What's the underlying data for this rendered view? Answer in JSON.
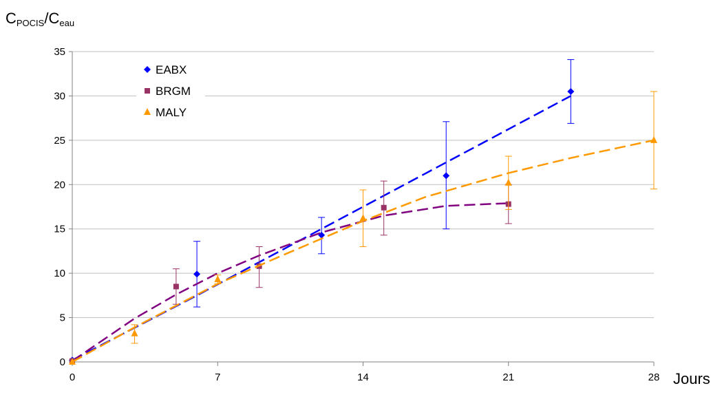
{
  "chart_data": {
    "type": "scatter",
    "ylabel": {
      "main": "C",
      "sub1": "POCIS",
      "sep": "/C",
      "sub2": "eau"
    },
    "xlabel": "Jours",
    "xlim": [
      0,
      28
    ],
    "ylim": [
      0,
      35
    ],
    "xticks": [
      0,
      7,
      14,
      21,
      28
    ],
    "xtick_labels": [
      "0",
      "7",
      "14",
      "21",
      "28"
    ],
    "yticks": [
      0,
      5,
      10,
      15,
      20,
      25,
      30,
      35
    ],
    "ytick_labels": [
      "0",
      "5",
      "10",
      "15",
      "20",
      "25",
      "30",
      "35"
    ],
    "grid": "horizontal",
    "legend_position": "top-left",
    "series": [
      {
        "name": "EABX",
        "color": "#0000ff",
        "marker": "diamond",
        "points": [
          {
            "x": 0,
            "y": 0.2,
            "err_lo": null,
            "err_hi": null
          },
          {
            "x": 6,
            "y": 9.9,
            "err_lo": 6.2,
            "err_hi": 13.6
          },
          {
            "x": 12,
            "y": 14.3,
            "err_lo": 12.2,
            "err_hi": 16.3
          },
          {
            "x": 18,
            "y": 21.0,
            "err_lo": 15.0,
            "err_hi": 27.1
          },
          {
            "x": 24,
            "y": 30.5,
            "err_lo": 26.9,
            "err_hi": 34.1
          }
        ],
        "trend": [
          [
            0,
            0.2
          ],
          [
            6,
            7.5
          ],
          [
            12,
            15.0
          ],
          [
            18,
            22.5
          ],
          [
            24,
            30.0
          ]
        ]
      },
      {
        "name": "BRGM",
        "color": "#993366",
        "trend_color": "#800080",
        "marker": "square",
        "points": [
          {
            "x": 0,
            "y": 0.1,
            "err_lo": null,
            "err_hi": null
          },
          {
            "x": 5,
            "y": 8.5,
            "err_lo": 6.5,
            "err_hi": 10.5
          },
          {
            "x": 9,
            "y": 10.8,
            "err_lo": 8.4,
            "err_hi": 13.0
          },
          {
            "x": 15,
            "y": 17.4,
            "err_lo": 14.3,
            "err_hi": 20.4
          },
          {
            "x": 21,
            "y": 17.8,
            "err_lo": 15.6,
            "err_hi": 20.0
          }
        ],
        "trend": [
          [
            0,
            0.1
          ],
          [
            3,
            4.9
          ],
          [
            5,
            7.6
          ],
          [
            7,
            10.0
          ],
          [
            9,
            12.0
          ],
          [
            12,
            14.6
          ],
          [
            15,
            16.5
          ],
          [
            18,
            17.6
          ],
          [
            21,
            17.9
          ]
        ]
      },
      {
        "name": "MALY",
        "color": "#ff9900",
        "marker": "triangle",
        "points": [
          {
            "x": 0,
            "y": 0.0,
            "err_lo": null,
            "err_hi": null
          },
          {
            "x": 3,
            "y": 3.2,
            "err_lo": 2.1,
            "err_hi": 4.2
          },
          {
            "x": 7,
            "y": 9.3,
            "err_lo": 8.8,
            "err_hi": 9.8
          },
          {
            "x": 14,
            "y": 16.2,
            "err_lo": 13.0,
            "err_hi": 19.4
          },
          {
            "x": 21,
            "y": 20.2,
            "err_lo": 17.2,
            "err_hi": 23.2
          },
          {
            "x": 28,
            "y": 25.0,
            "err_lo": 19.5,
            "err_hi": 30.5
          }
        ],
        "trend": [
          [
            0,
            0.0
          ],
          [
            3,
            3.9
          ],
          [
            7,
            8.8
          ],
          [
            10,
            11.9
          ],
          [
            14,
            15.9
          ],
          [
            17,
            18.6
          ],
          [
            21,
            21.3
          ],
          [
            24,
            23.0
          ],
          [
            28,
            25.0
          ]
        ]
      }
    ]
  }
}
